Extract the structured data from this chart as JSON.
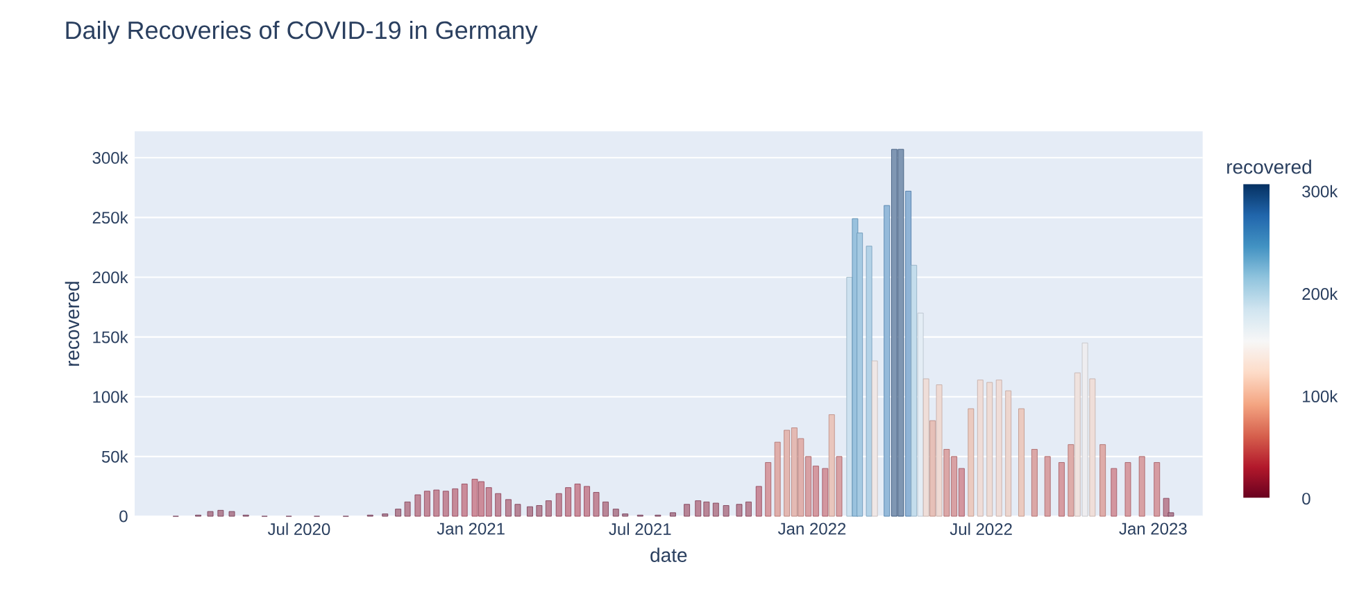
{
  "chart_data": {
    "type": "bar",
    "title": "Daily Recoveries of COVID-19 in Germany",
    "xlabel": "date",
    "ylabel": "recovered",
    "clabel": "recovered",
    "grid": "y",
    "xlim": [
      "2020-01-07",
      "2023-02-23"
    ],
    "xticks": [
      {
        "value": "2020-07-01",
        "label": "Jul 2020"
      },
      {
        "value": "2021-01-01",
        "label": "Jan 2021"
      },
      {
        "value": "2021-07-01",
        "label": "Jul 2021"
      },
      {
        "value": "2022-01-01",
        "label": "Jan 2022"
      },
      {
        "value": "2022-07-01",
        "label": "Jul 2022"
      },
      {
        "value": "2023-01-01",
        "label": "Jan 2023"
      }
    ],
    "ylim": [
      0,
      322000
    ],
    "yticks": [
      0,
      {
        "value": 50000,
        "label": "50k"
      },
      {
        "value": 100000,
        "label": "100k"
      },
      {
        "value": 150000,
        "label": "150k"
      },
      {
        "value": 200000,
        "label": "200k"
      },
      {
        "value": 250000,
        "label": "250k"
      },
      {
        "value": 300000,
        "label": "300k"
      }
    ],
    "clim": [
      0,
      307000
    ],
    "cticks": [
      0,
      {
        "value": 100000,
        "label": "100k"
      },
      {
        "value": 200000,
        "label": "200k"
      },
      {
        "value": 300000,
        "label": "300k"
      }
    ],
    "x": [
      "2020-02-20",
      "2020-03-15",
      "2020-03-28",
      "2020-04-08",
      "2020-04-20",
      "2020-05-05",
      "2020-05-25",
      "2020-06-20",
      "2020-07-20",
      "2020-08-20",
      "2020-09-15",
      "2020-10-01",
      "2020-10-15",
      "2020-10-25",
      "2020-11-05",
      "2020-11-15",
      "2020-11-25",
      "2020-12-05",
      "2020-12-15",
      "2020-12-25",
      "2021-01-05",
      "2021-01-12",
      "2021-01-20",
      "2021-01-30",
      "2021-02-10",
      "2021-02-20",
      "2021-03-05",
      "2021-03-15",
      "2021-03-25",
      "2021-04-05",
      "2021-04-15",
      "2021-04-25",
      "2021-05-05",
      "2021-05-15",
      "2021-05-25",
      "2021-06-05",
      "2021-06-15",
      "2021-07-01",
      "2021-07-20",
      "2021-08-05",
      "2021-08-20",
      "2021-09-01",
      "2021-09-10",
      "2021-09-20",
      "2021-10-01",
      "2021-10-15",
      "2021-10-25",
      "2021-11-05",
      "2021-11-15",
      "2021-11-25",
      "2021-12-05",
      "2021-12-13",
      "2021-12-20",
      "2021-12-28",
      "2022-01-05",
      "2022-01-15",
      "2022-01-22",
      "2022-01-30",
      "2022-02-10",
      "2022-02-16",
      "2022-02-21",
      "2022-03-03",
      "2022-03-09",
      "2022-03-22",
      "2022-03-30",
      "2022-04-06",
      "2022-04-14",
      "2022-04-20",
      "2022-04-27",
      "2022-05-03",
      "2022-05-10",
      "2022-05-17",
      "2022-05-25",
      "2022-06-02",
      "2022-06-10",
      "2022-06-20",
      "2022-06-30",
      "2022-07-10",
      "2022-07-20",
      "2022-07-30",
      "2022-08-13",
      "2022-08-27",
      "2022-09-10",
      "2022-09-25",
      "2022-10-05",
      "2022-10-12",
      "2022-10-20",
      "2022-10-28",
      "2022-11-08",
      "2022-11-20",
      "2022-12-05",
      "2022-12-20",
      "2023-01-05",
      "2023-01-15",
      "2023-01-20"
    ],
    "values": [
      0,
      1000,
      4000,
      5000,
      4000,
      1000,
      0,
      0,
      0,
      0,
      1000,
      2000,
      6000,
      12000,
      18000,
      21000,
      22000,
      21000,
      23000,
      27000,
      31000,
      29000,
      24000,
      19000,
      14000,
      10000,
      8000,
      9000,
      13000,
      19000,
      24000,
      27000,
      25000,
      20000,
      12000,
      6000,
      2000,
      1000,
      1000,
      3000,
      10000,
      13000,
      12000,
      11000,
      9000,
      10000,
      12000,
      25000,
      45000,
      62000,
      72000,
      74000,
      65000,
      50000,
      42000,
      40000,
      85000,
      50000,
      200000,
      249000,
      237000,
      226000,
      130000,
      260000,
      307000,
      307000,
      272000,
      210000,
      170000,
      115000,
      80000,
      110000,
      56000,
      50000,
      40000,
      90000,
      114000,
      112000,
      114000,
      105000,
      90000,
      56000,
      50000,
      45000,
      60000,
      120000,
      145000,
      115000,
      60000,
      40000,
      45000,
      50000,
      45000,
      15000,
      3000
    ]
  }
}
